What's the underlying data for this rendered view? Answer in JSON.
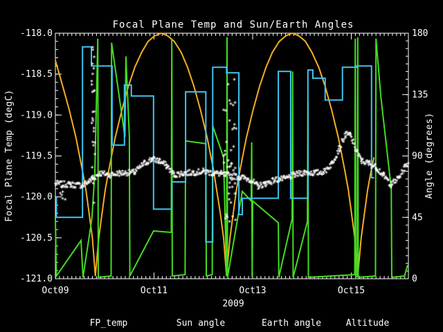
{
  "title": "Focal Plane Temp and Sun/Earth Angles",
  "axes": {
    "left_label": "Focal Plane Temp (degC)",
    "right_label": "Angle (degrees)",
    "year_label": "2009"
  },
  "legend": [
    {
      "label": "FP_temp",
      "color": "#ffffff"
    },
    {
      "label": "Sun angle",
      "color": "#3ec6f2"
    },
    {
      "label": "Earth angle",
      "color": "#44dc22"
    },
    {
      "label": "Altitude",
      "color": "#f6ae24"
    }
  ],
  "chart_data": {
    "type": "line",
    "title": "Focal Plane Temp and Sun/Earth Angles",
    "x_axis": {
      "unit": "day of October 2009",
      "lim_days": [
        9.0,
        16.157
      ],
      "tick_days": [
        9,
        11,
        13,
        15
      ],
      "tick_labels": [
        "Oct09",
        "Oct11",
        "Oct13",
        "Oct15"
      ],
      "minor_step_days": 0.0833333,
      "year": "2009"
    },
    "y_left": {
      "label": "Focal Plane Temp (degC)",
      "lim": [
        -121.0,
        -118.0
      ],
      "major_step": 0.5,
      "minor_step": 0.1,
      "tick_labels": [
        "-118.0",
        "-118.5",
        "-119.0",
        "-119.5",
        "-120.0",
        "-120.5",
        "-121.0"
      ],
      "tick_values": [
        -118.0,
        -118.5,
        -119.0,
        -119.5,
        -120.0,
        -120.5,
        -121.0
      ]
    },
    "y_right": {
      "label": "Angle (degrees)",
      "lim": [
        0,
        180
      ],
      "major_step": 45,
      "minor_step": 5.625,
      "tick_labels": [
        "180",
        "135",
        "90",
        "45",
        "0"
      ],
      "tick_values": [
        180,
        135,
        90,
        45,
        0
      ]
    },
    "grid": false,
    "background": "#000000",
    "series": {
      "sun_angle": {
        "name": "Sun angle",
        "color": "#3ec6f2",
        "axis": "right",
        "mode": "step",
        "points": [
          [
            9.0,
            59
          ],
          [
            9.02,
            45
          ],
          [
            9.55,
            170
          ],
          [
            9.73,
            156
          ],
          [
            10.15,
            98
          ],
          [
            10.4,
            142
          ],
          [
            10.54,
            134
          ],
          [
            10.99,
            51
          ],
          [
            11.36,
            71
          ],
          [
            11.64,
            137
          ],
          [
            12.05,
            27
          ],
          [
            12.19,
            155
          ],
          [
            12.47,
            151
          ],
          [
            12.72,
            47
          ],
          [
            12.79,
            59
          ],
          [
            13.52,
            152
          ],
          [
            13.77,
            59
          ],
          [
            14.12,
            153
          ],
          [
            14.22,
            147
          ],
          [
            14.47,
            131
          ],
          [
            14.82,
            155
          ],
          [
            15.11,
            156
          ],
          [
            15.41,
            74
          ],
          [
            15.46,
            74
          ]
        ]
      },
      "earth_angle": {
        "name": "Earth angle",
        "color": "#44dc22",
        "axis": "right",
        "mode": "linear",
        "points": [
          [
            9.0,
            45
          ],
          [
            9.02,
            2
          ],
          [
            9.52,
            28
          ],
          [
            9.56,
            1
          ],
          [
            9.74,
            44
          ],
          [
            9.8,
            78
          ],
          [
            9.86,
            176
          ],
          [
            9.87,
            1
          ],
          [
            10.13,
            2
          ],
          [
            10.14,
            173
          ],
          [
            10.41,
            104
          ],
          [
            10.43,
            163
          ],
          [
            10.5,
            104
          ],
          [
            10.51,
            2
          ],
          [
            10.99,
            35
          ],
          [
            11.35,
            34
          ],
          [
            11.36,
            176
          ],
          [
            11.37,
            2
          ],
          [
            11.63,
            3
          ],
          [
            11.64,
            101
          ],
          [
            12.05,
            99
          ],
          [
            12.06,
            2
          ],
          [
            12.18,
            3
          ],
          [
            12.19,
            112
          ],
          [
            12.41,
            89
          ],
          [
            12.47,
            2
          ],
          [
            12.48,
            177
          ],
          [
            12.49,
            1
          ],
          [
            12.79,
            64
          ],
          [
            12.97,
            57
          ],
          [
            12.98,
            100
          ],
          [
            12.99,
            1
          ],
          [
            13.0,
            57
          ],
          [
            13.52,
            41
          ],
          [
            13.53,
            1
          ],
          [
            13.8,
            44
          ],
          [
            13.81,
            152
          ],
          [
            13.82,
            1
          ],
          [
            14.11,
            42
          ],
          [
            14.12,
            130
          ],
          [
            14.13,
            1
          ],
          [
            15.07,
            3
          ],
          [
            15.08,
            176
          ],
          [
            15.09,
            1
          ],
          [
            15.12,
            2
          ],
          [
            15.13,
            177
          ],
          [
            15.14,
            1
          ],
          [
            15.49,
            2
          ],
          [
            15.5,
            176
          ],
          [
            15.6,
            133
          ],
          [
            15.81,
            66
          ],
          [
            15.82,
            1
          ],
          [
            16.08,
            2
          ],
          [
            16.14,
            10
          ]
        ]
      },
      "altitude": {
        "name": "Altitude",
        "color": "#f6ae24",
        "axis": "right",
        "mode": "linear",
        "note": "normalized altitude plotted on angle axis; perigees Oct 9.81, 12.47, 15.13",
        "points": [
          [
            9.0,
            160
          ],
          [
            9.15,
            141
          ],
          [
            9.28,
            124
          ],
          [
            9.42,
            103
          ],
          [
            9.55,
            79
          ],
          [
            9.62,
            65
          ],
          [
            9.68,
            49
          ],
          [
            9.75,
            30
          ],
          [
            9.81,
            2
          ],
          [
            9.88,
            30
          ],
          [
            9.95,
            49
          ],
          [
            10.01,
            65
          ],
          [
            10.08,
            79
          ],
          [
            10.21,
            103
          ],
          [
            10.35,
            124
          ],
          [
            10.48,
            141
          ],
          [
            10.61,
            155
          ],
          [
            10.75,
            166
          ],
          [
            10.88,
            174
          ],
          [
            11.01,
            178
          ],
          [
            11.15,
            180
          ],
          [
            11.28,
            178
          ],
          [
            11.41,
            174
          ],
          [
            11.55,
            166
          ],
          [
            11.68,
            155
          ],
          [
            11.81,
            141
          ],
          [
            11.94,
            124
          ],
          [
            12.08,
            103
          ],
          [
            12.21,
            79
          ],
          [
            12.27,
            65
          ],
          [
            12.34,
            49
          ],
          [
            12.41,
            30
          ],
          [
            12.47,
            2
          ],
          [
            12.54,
            30
          ],
          [
            12.61,
            49
          ],
          [
            12.67,
            65
          ],
          [
            12.74,
            79
          ],
          [
            12.87,
            103
          ],
          [
            13.01,
            124
          ],
          [
            13.14,
            141
          ],
          [
            13.27,
            155
          ],
          [
            13.4,
            166
          ],
          [
            13.54,
            174
          ],
          [
            13.67,
            178
          ],
          [
            13.8,
            180
          ],
          [
            13.94,
            178
          ],
          [
            14.07,
            174
          ],
          [
            14.2,
            166
          ],
          [
            14.34,
            155
          ],
          [
            14.47,
            141
          ],
          [
            14.6,
            124
          ],
          [
            14.74,
            103
          ],
          [
            14.87,
            79
          ],
          [
            14.94,
            65
          ],
          [
            15.0,
            49
          ],
          [
            15.07,
            30
          ],
          [
            15.13,
            2
          ],
          [
            15.2,
            30
          ],
          [
            15.27,
            49
          ],
          [
            15.33,
            65
          ],
          [
            15.4,
            79
          ],
          [
            15.46,
            89
          ]
        ]
      },
      "fp_temp": {
        "name": "FP_temp",
        "color": "#ffffff",
        "axis": "left",
        "mode": "scatter",
        "marker": "*",
        "baseline": [
          [
            9.0,
            -119.85
          ],
          [
            9.3,
            -119.86
          ],
          [
            9.55,
            -119.87
          ],
          [
            9.68,
            -119.82
          ],
          [
            9.9,
            -119.72
          ],
          [
            10.1,
            -119.74
          ],
          [
            10.3,
            -119.72
          ],
          [
            10.6,
            -119.71
          ],
          [
            10.8,
            -119.6
          ],
          [
            10.95,
            -119.55
          ],
          [
            11.1,
            -119.57
          ],
          [
            11.25,
            -119.63
          ],
          [
            11.4,
            -119.74
          ],
          [
            11.6,
            -119.72
          ],
          [
            11.8,
            -119.71
          ],
          [
            12.0,
            -119.7
          ],
          [
            12.2,
            -119.72
          ],
          [
            12.35,
            -119.73
          ],
          [
            12.75,
            -119.77
          ],
          [
            12.95,
            -119.8
          ],
          [
            13.1,
            -119.88
          ],
          [
            13.25,
            -119.85
          ],
          [
            13.45,
            -119.8
          ],
          [
            13.65,
            -119.79
          ],
          [
            13.85,
            -119.74
          ],
          [
            14.05,
            -119.71
          ],
          [
            14.25,
            -119.72
          ],
          [
            14.45,
            -119.7
          ],
          [
            14.6,
            -119.6
          ],
          [
            14.75,
            -119.42
          ],
          [
            14.88,
            -119.25
          ],
          [
            14.97,
            -119.25
          ],
          [
            15.08,
            -119.42
          ],
          [
            15.2,
            -119.57
          ],
          [
            15.35,
            -119.6
          ],
          [
            15.5,
            -119.65
          ],
          [
            15.65,
            -119.75
          ],
          [
            15.8,
            -119.86
          ],
          [
            15.95,
            -119.78
          ],
          [
            16.08,
            -119.65
          ],
          [
            16.15,
            -119.6
          ]
        ],
        "noise_degC": 0.035,
        "excursions": [
          {
            "t": 9.77,
            "span": 0.07,
            "tmin": -120.1,
            "tmax": -118.05,
            "n": 30
          },
          {
            "t": 12.56,
            "span": 0.3,
            "tmin": -120.35,
            "tmax": -118.5,
            "n": 45
          },
          {
            "t": 9.12,
            "span": 0.22,
            "tmin": -120.05,
            "tmax": -119.88,
            "n": 6
          }
        ]
      }
    }
  }
}
